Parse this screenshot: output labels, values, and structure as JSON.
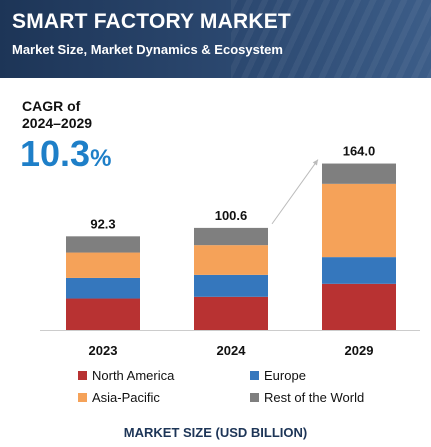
{
  "header": {
    "title": "SMART FACTORY MARKET",
    "subtitle": "Market Size, Market Dynamics & Ecosystem"
  },
  "cagr": {
    "label": "CAGR of\n2024–2029",
    "value": "10.3",
    "unit": "%"
  },
  "chart_data": {
    "type": "bar",
    "stacked": true,
    "categories": [
      "2023",
      "2024",
      "2029"
    ],
    "totals": [
      92.3,
      100.6,
      164.0
    ],
    "total_labels": [
      "92.3",
      "100.6",
      "164.0"
    ],
    "series": [
      {
        "name": "North America",
        "color": "#b83232",
        "values": [
          31.0,
          32.7,
          45.5
        ]
      },
      {
        "name": "Europe",
        "color": "#3577bd",
        "values": [
          20.3,
          21.6,
          26.3
        ]
      },
      {
        "name": "Asia-Pacific",
        "color": "#f5a259",
        "values": [
          25.0,
          29.3,
          72.2
        ]
      },
      {
        "name": "Rest of the World",
        "color": "#7f7f7f",
        "values": [
          16.0,
          17.0,
          20.0
        ]
      }
    ],
    "ylim": [
      0,
      180
    ],
    "xlabel": "MARKET SIZE (USD BILLION)",
    "legend_position": "bottom"
  }
}
